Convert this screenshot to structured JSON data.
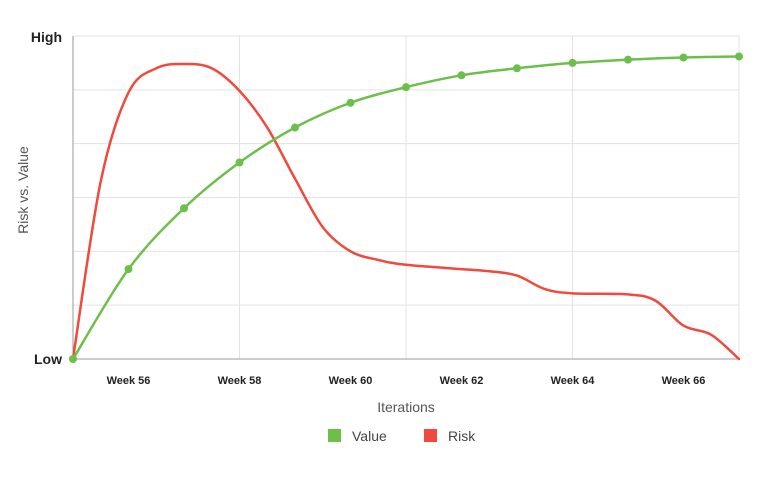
{
  "chart_data": {
    "type": "line",
    "xlabel": "Iterations",
    "ylabel": "Risk vs. Value",
    "x_tick_labels": [
      "Week 56",
      "Week 58",
      "Week 60",
      "Week 62",
      "Week 64",
      "Week 66"
    ],
    "x_ticks": [
      56,
      58,
      60,
      62,
      64,
      66
    ],
    "xlim": [
      55,
      67
    ],
    "ylim": [
      0,
      6
    ],
    "y_tick_labels": {
      "low": "Low",
      "high": "High"
    },
    "grid": true,
    "legend": "bottom-center",
    "series": [
      {
        "name": "Value",
        "color": "#6cc04a",
        "markers": true,
        "x": [
          55,
          56,
          57,
          58,
          59,
          60,
          61,
          62,
          63,
          64,
          65,
          66,
          67
        ],
        "y": [
          0,
          1.67,
          2.8,
          3.65,
          4.3,
          4.76,
          5.05,
          5.27,
          5.4,
          5.5,
          5.56,
          5.6,
          5.62
        ]
      },
      {
        "name": "Risk",
        "color": "#ef4a3d",
        "markers": false,
        "x": [
          55,
          55.5,
          56,
          56.5,
          57,
          57.5,
          58,
          58.5,
          59,
          59.5,
          60,
          60.5,
          61,
          62,
          62.5,
          63,
          63.5,
          64,
          65,
          65.5,
          66,
          66.5,
          67
        ],
        "y": [
          0,
          3.3,
          4.95,
          5.4,
          5.48,
          5.4,
          4.98,
          4.3,
          3.35,
          2.45,
          2.0,
          1.84,
          1.75,
          1.67,
          1.63,
          1.55,
          1.3,
          1.22,
          1.2,
          1.08,
          0.62,
          0.45,
          0
        ]
      }
    ]
  }
}
